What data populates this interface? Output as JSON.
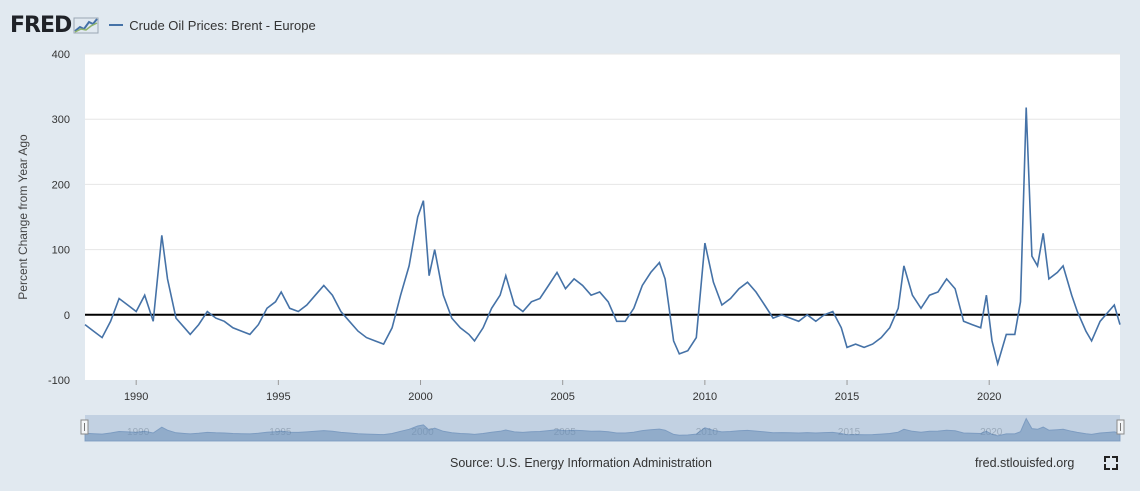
{
  "brand": {
    "logo_text": "FRED",
    "logo_icon": "trend-line-icon"
  },
  "colors": {
    "series": "#4572a7",
    "navigator_fill": "#b7c8dc",
    "background": "#e1e9f0",
    "plot_bg": "#ffffff"
  },
  "footer": {
    "source": "Source: U.S. Energy Information Administration",
    "site": "fred.stlouisfed.org",
    "fullscreen_icon": "fullscreen-icon"
  },
  "chart_data": {
    "type": "line",
    "title": "",
    "xlabel": "",
    "ylabel": "Percent Change from Year Ago",
    "ylim": [
      -100,
      400
    ],
    "xlim": [
      1988.2,
      2024.6
    ],
    "yticks": [
      -100,
      0,
      100,
      200,
      300,
      400
    ],
    "xticks": [
      1990,
      1995,
      2000,
      2005,
      2010,
      2015,
      2020
    ],
    "navigator_ticks": [
      1990,
      1995,
      2000,
      2005,
      2010,
      2015,
      2020
    ],
    "grid": true,
    "legend": "top-left",
    "zero_line": 0,
    "series": [
      {
        "name": "Crude Oil Prices: Brent - Europe",
        "points": [
          [
            1988.2,
            -15
          ],
          [
            1988.5,
            -25
          ],
          [
            1988.8,
            -35
          ],
          [
            1989.1,
            -10
          ],
          [
            1989.4,
            25
          ],
          [
            1989.7,
            15
          ],
          [
            1990.0,
            5
          ],
          [
            1990.3,
            30
          ],
          [
            1990.6,
            -10
          ],
          [
            1990.9,
            122
          ],
          [
            1991.1,
            55
          ],
          [
            1991.4,
            -5
          ],
          [
            1991.7,
            -20
          ],
          [
            1991.9,
            -30
          ],
          [
            1992.2,
            -15
          ],
          [
            1992.5,
            5
          ],
          [
            1992.8,
            -5
          ],
          [
            1993.1,
            -10
          ],
          [
            1993.4,
            -20
          ],
          [
            1993.7,
            -25
          ],
          [
            1994.0,
            -30
          ],
          [
            1994.3,
            -15
          ],
          [
            1994.6,
            10
          ],
          [
            1994.9,
            20
          ],
          [
            1995.1,
            35
          ],
          [
            1995.4,
            10
          ],
          [
            1995.7,
            5
          ],
          [
            1996.0,
            15
          ],
          [
            1996.3,
            30
          ],
          [
            1996.6,
            45
          ],
          [
            1996.9,
            30
          ],
          [
            1997.2,
            5
          ],
          [
            1997.5,
            -10
          ],
          [
            1997.8,
            -25
          ],
          [
            1998.1,
            -35
          ],
          [
            1998.4,
            -40
          ],
          [
            1998.7,
            -45
          ],
          [
            1999.0,
            -20
          ],
          [
            1999.3,
            30
          ],
          [
            1999.6,
            75
          ],
          [
            1999.9,
            150
          ],
          [
            2000.1,
            175
          ],
          [
            2000.3,
            60
          ],
          [
            2000.5,
            100
          ],
          [
            2000.8,
            30
          ],
          [
            2001.1,
            -5
          ],
          [
            2001.4,
            -20
          ],
          [
            2001.7,
            -30
          ],
          [
            2001.9,
            -40
          ],
          [
            2002.2,
            -20
          ],
          [
            2002.5,
            10
          ],
          [
            2002.8,
            30
          ],
          [
            2003.0,
            60
          ],
          [
            2003.3,
            15
          ],
          [
            2003.6,
            5
          ],
          [
            2003.9,
            20
          ],
          [
            2004.2,
            25
          ],
          [
            2004.5,
            45
          ],
          [
            2004.8,
            65
          ],
          [
            2005.1,
            40
          ],
          [
            2005.4,
            55
          ],
          [
            2005.7,
            45
          ],
          [
            2006.0,
            30
          ],
          [
            2006.3,
            35
          ],
          [
            2006.6,
            20
          ],
          [
            2006.9,
            -10
          ],
          [
            2007.2,
            -10
          ],
          [
            2007.5,
            10
          ],
          [
            2007.8,
            45
          ],
          [
            2008.1,
            65
          ],
          [
            2008.4,
            80
          ],
          [
            2008.6,
            55
          ],
          [
            2008.9,
            -40
          ],
          [
            2009.1,
            -60
          ],
          [
            2009.4,
            -55
          ],
          [
            2009.7,
            -35
          ],
          [
            2010.0,
            110
          ],
          [
            2010.3,
            50
          ],
          [
            2010.6,
            15
          ],
          [
            2010.9,
            25
          ],
          [
            2011.2,
            40
          ],
          [
            2011.5,
            50
          ],
          [
            2011.8,
            35
          ],
          [
            2012.1,
            15
          ],
          [
            2012.4,
            -5
          ],
          [
            2012.7,
            0
          ],
          [
            2013.0,
            -5
          ],
          [
            2013.3,
            -10
          ],
          [
            2013.6,
            0
          ],
          [
            2013.9,
            -10
          ],
          [
            2014.2,
            0
          ],
          [
            2014.5,
            5
          ],
          [
            2014.8,
            -20
          ],
          [
            2015.0,
            -50
          ],
          [
            2015.3,
            -45
          ],
          [
            2015.6,
            -50
          ],
          [
            2015.9,
            -45
          ],
          [
            2016.2,
            -35
          ],
          [
            2016.5,
            -20
          ],
          [
            2016.8,
            10
          ],
          [
            2017.0,
            75
          ],
          [
            2017.3,
            30
          ],
          [
            2017.6,
            10
          ],
          [
            2017.9,
            30
          ],
          [
            2018.2,
            35
          ],
          [
            2018.5,
            55
          ],
          [
            2018.8,
            40
          ],
          [
            2019.1,
            -10
          ],
          [
            2019.4,
            -15
          ],
          [
            2019.7,
            -20
          ],
          [
            2019.9,
            30
          ],
          [
            2020.1,
            -40
          ],
          [
            2020.3,
            -75
          ],
          [
            2020.6,
            -30
          ],
          [
            2020.9,
            -30
          ],
          [
            2021.1,
            20
          ],
          [
            2021.3,
            318
          ],
          [
            2021.5,
            90
          ],
          [
            2021.7,
            75
          ],
          [
            2021.9,
            125
          ],
          [
            2022.1,
            55
          ],
          [
            2022.4,
            65
          ],
          [
            2022.6,
            75
          ],
          [
            2022.9,
            30
          ],
          [
            2023.1,
            5
          ],
          [
            2023.4,
            -25
          ],
          [
            2023.6,
            -40
          ],
          [
            2023.9,
            -10
          ],
          [
            2024.2,
            5
          ],
          [
            2024.4,
            15
          ],
          [
            2024.6,
            -15
          ]
        ]
      }
    ]
  }
}
